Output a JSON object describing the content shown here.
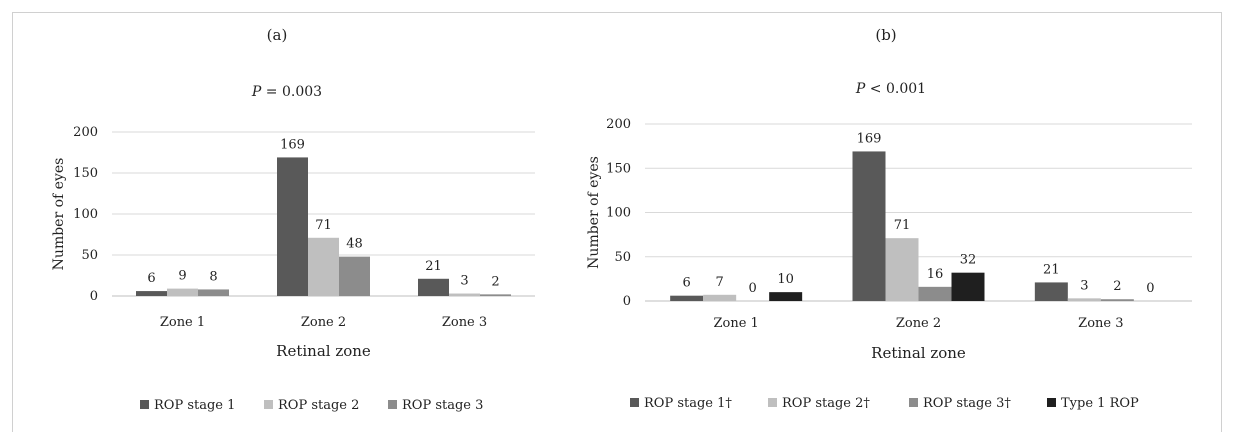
{
  "chart_data": [
    {
      "type": "bar",
      "panel_label": "(a)",
      "annotation_prefix": "P",
      "annotation_rest": " = 0.003",
      "categories": [
        "Zone 1",
        "Zone 2",
        "Zone 3"
      ],
      "series": [
        {
          "name": "ROP stage 1",
          "values": [
            6,
            169,
            21
          ],
          "color": "#595959"
        },
        {
          "name": "ROP stage 2",
          "values": [
            9,
            71,
            3
          ],
          "color": "#bfbfbf"
        },
        {
          "name": "ROP stage 3",
          "values": [
            8,
            48,
            2
          ],
          "color": "#8c8c8c"
        }
      ],
      "xlabel": "Retinal zone",
      "ylabel": "Number of eyes",
      "ylim": [
        0,
        200
      ],
      "yticks": [
        0,
        50,
        100,
        150,
        200
      ],
      "grid": true,
      "legend_position": "bottom"
    },
    {
      "type": "bar",
      "panel_label": "(b)",
      "annotation_prefix": "P",
      "annotation_rest": " < 0.001",
      "categories": [
        "Zone 1",
        "Zone 2",
        "Zone 3"
      ],
      "series": [
        {
          "name": "ROP stage 1†",
          "values": [
            6,
            169,
            21
          ],
          "color": "#595959"
        },
        {
          "name": "ROP stage 2†",
          "values": [
            7,
            71,
            3
          ],
          "color": "#bfbfbf"
        },
        {
          "name": "ROP stage 3†",
          "values": [
            0,
            16,
            2
          ],
          "color": "#8c8c8c"
        },
        {
          "name": "Type 1 ROP",
          "values": [
            10,
            32,
            0
          ],
          "color": "#1f1f1f"
        }
      ],
      "xlabel": "Retinal zone",
      "ylabel": "Number of eyes",
      "ylim": [
        0,
        200
      ],
      "yticks": [
        0,
        50,
        100,
        150,
        200
      ],
      "grid": true,
      "legend_position": "bottom"
    }
  ]
}
